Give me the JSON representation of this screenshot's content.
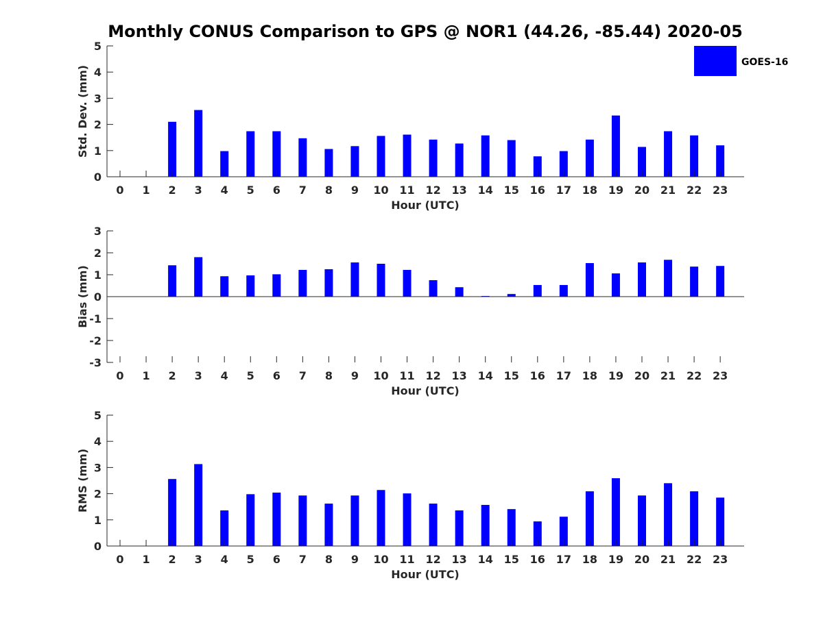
{
  "chart_data": {
    "type": "bar",
    "title": "Monthly CONUS Comparison to GPS @ NOR1 (44.26, -85.44) 2020-05",
    "legend": {
      "label": "GOES-16",
      "placement": "top-right"
    },
    "bar_color": "#0000ff",
    "panels": [
      {
        "id": "std-dev",
        "ylabel": "Std. Dev. (mm)",
        "xlabel": "Hour (UTC)",
        "ylim": [
          0,
          5
        ],
        "yticks": [
          0,
          1,
          2,
          3,
          4,
          5
        ],
        "categories": [
          0,
          1,
          2,
          3,
          4,
          5,
          6,
          7,
          8,
          9,
          10,
          11,
          12,
          13,
          14,
          15,
          16,
          17,
          18,
          19,
          20,
          21,
          22,
          23
        ],
        "values": [
          null,
          null,
          2.1,
          2.55,
          0.98,
          1.74,
          1.74,
          1.47,
          1.06,
          1.17,
          1.56,
          1.61,
          1.42,
          1.27,
          1.58,
          1.4,
          0.78,
          0.98,
          1.42,
          2.34,
          1.14,
          1.74,
          1.58,
          1.2
        ]
      },
      {
        "id": "bias",
        "ylabel": "Bias (mm)",
        "xlabel": "Hour (UTC)",
        "ylim": [
          -3,
          3
        ],
        "yticks": [
          -3,
          -2,
          -1,
          0,
          1,
          2,
          3
        ],
        "categories": [
          0,
          1,
          2,
          3,
          4,
          5,
          6,
          7,
          8,
          9,
          10,
          11,
          12,
          13,
          14,
          15,
          16,
          17,
          18,
          19,
          20,
          21,
          22,
          23
        ],
        "values": [
          null,
          null,
          1.43,
          1.8,
          0.93,
          0.97,
          1.02,
          1.22,
          1.25,
          1.56,
          1.5,
          1.22,
          0.75,
          0.43,
          0.03,
          0.12,
          0.53,
          0.53,
          1.53,
          1.06,
          1.56,
          1.68,
          1.37,
          1.4
        ]
      },
      {
        "id": "rms",
        "ylabel": "RMS (mm)",
        "xlabel": "Hour (UTC)",
        "ylim": [
          0,
          5
        ],
        "yticks": [
          0,
          1,
          2,
          3,
          4,
          5
        ],
        "categories": [
          0,
          1,
          2,
          3,
          4,
          5,
          6,
          7,
          8,
          9,
          10,
          11,
          12,
          13,
          14,
          15,
          16,
          17,
          18,
          19,
          20,
          21,
          22,
          23
        ],
        "values": [
          null,
          null,
          2.56,
          3.13,
          1.36,
          1.98,
          2.04,
          1.93,
          1.62,
          1.93,
          2.14,
          2.01,
          1.62,
          1.36,
          1.57,
          1.41,
          0.94,
          1.12,
          2.09,
          2.59,
          1.93,
          2.4,
          2.09,
          1.85
        ]
      }
    ]
  }
}
